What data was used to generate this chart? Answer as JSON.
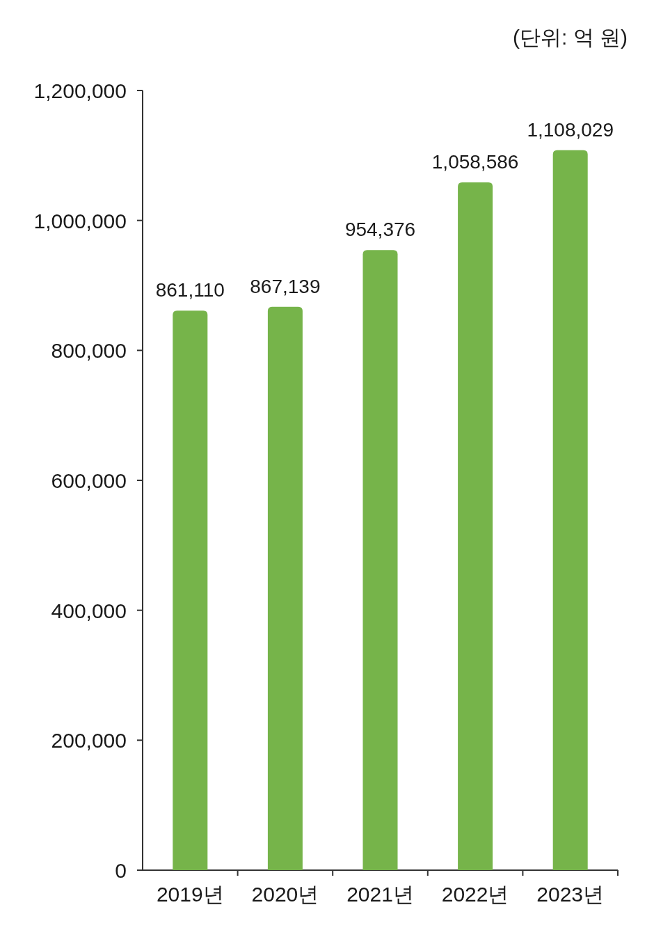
{
  "chart_data": {
    "type": "bar",
    "annotations": [
      "(단위: 억 원)"
    ],
    "categories": [
      "2019년",
      "2020년",
      "2021년",
      "2022년",
      "2023년"
    ],
    "values": [
      861110,
      867139,
      954376,
      1058586,
      1108029
    ],
    "value_labels": [
      "861,110",
      "867,139",
      "954,376",
      "1,058,586",
      "1,108,029"
    ],
    "color": "#76b44a",
    "ylim": [
      0,
      1200000
    ],
    "yticks": [
      0,
      {
        "value": 200000,
        "label": "200,000"
      },
      {
        "value": 400000,
        "label": "400,000"
      },
      {
        "value": 600000,
        "label": "600,000"
      },
      {
        "value": 800000,
        "label": "800,000"
      },
      {
        "value": 1000000,
        "label": "1,000,000"
      },
      {
        "value": 1200000,
        "label": "1,200,000"
      }
    ]
  }
}
